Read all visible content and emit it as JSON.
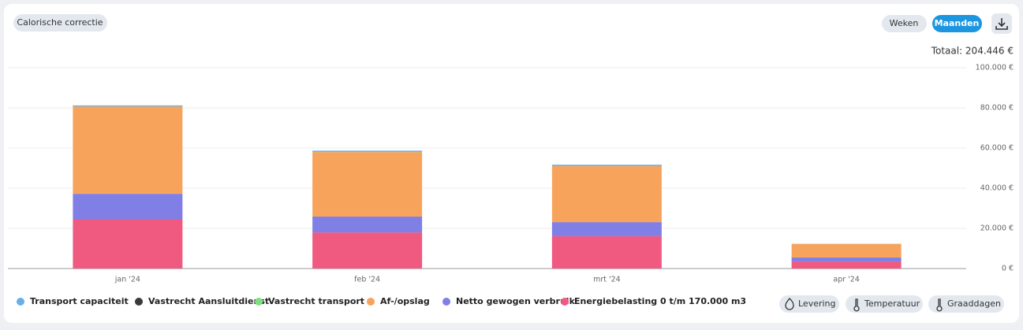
{
  "ui": {
    "filter_chip": "Calorische correctie",
    "period_buttons": [
      "Weken",
      "Maanden"
    ],
    "total": "Totaal: 204.446 €",
    "toggle_buttons": [
      "Levering",
      "Temperatuur",
      "Graaddagen"
    ]
  },
  "chart_data": {
    "type": "stacked_bar",
    "categories": [
      "jan '24",
      "feb '24",
      "mrt '24",
      "apr '24"
    ],
    "series": [
      {
        "name": "Transport capaciteit",
        "color": "#6aaee8",
        "values": [
          400,
          600,
          600,
          100
        ]
      },
      {
        "name": "Vastrecht Aansluitdienst",
        "color": "#3a3a3a",
        "values": [
          100,
          50,
          50,
          20
        ]
      },
      {
        "name": "Vastrecht transport",
        "color": "#7ee07e",
        "values": [
          50,
          50,
          50,
          20
        ]
      },
      {
        "name": "Af-/opslag",
        "color": "#f8a35c",
        "values": [
          43500,
          32100,
          27900,
          6700
        ]
      },
      {
        "name": "Netto gewogen verbruik",
        "color": "#7f7fe6",
        "values": [
          12500,
          7900,
          7000,
          2000
        ]
      },
      {
        "name": "Energiebelasting 0 t/m 170.000 m3",
        "color": "#f05a80",
        "values": [
          24700,
          18000,
          16100,
          3500
        ]
      }
    ],
    "ylim": [
      0,
      100000
    ],
    "yticks": [
      {
        "value": 0,
        "label": "0 €"
      },
      {
        "value": 20000,
        "label": "20.000 €"
      },
      {
        "value": 40000,
        "label": "40.000 €"
      },
      {
        "value": 60000,
        "label": "60.000 €"
      },
      {
        "value": 80000,
        "label": "80.000 €"
      },
      {
        "value": 100000,
        "label": "100.000 €"
      }
    ],
    "grid": true
  }
}
